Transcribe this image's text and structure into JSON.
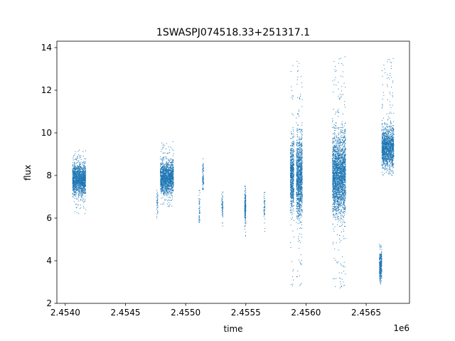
{
  "chart_data": {
    "type": "scatter",
    "title": "1SWASPJ074518.33+251317.1",
    "xlabel": "time",
    "ylabel": "flux",
    "x_offset_label": "1e6",
    "xlim": [
      2.45393,
      2.45686
    ],
    "ylim": [
      2.0,
      14.3
    ],
    "x_ticks": [
      2.454,
      2.4545,
      2.455,
      2.4555,
      2.456,
      2.4565
    ],
    "x_tick_labels": [
      "2.4540",
      "2.4545",
      "2.4550",
      "2.4555",
      "2.4560",
      "2.4565"
    ],
    "y_ticks": [
      2,
      4,
      6,
      8,
      10,
      12,
      14
    ],
    "y_tick_labels": [
      "2",
      "4",
      "6",
      "8",
      "10",
      "12",
      "14"
    ],
    "marker_color": "#1f77b4",
    "grid": false,
    "clusters": [
      {
        "x_range": [
          2.45406,
          2.45417
        ],
        "y_center": 7.8,
        "y_spread": 0.35,
        "y_min": 6.2,
        "y_max": 9.2,
        "count": 1500
      },
      {
        "x_range": [
          2.45476,
          2.45477
        ],
        "y_center": 6.6,
        "y_spread": 0.3,
        "y_min": 6.0,
        "y_max": 7.3,
        "count": 40
      },
      {
        "x_range": [
          2.45479,
          2.4549
        ],
        "y_center": 7.9,
        "y_spread": 0.35,
        "y_min": 6.5,
        "y_max": 9.6,
        "count": 1500
      },
      {
        "x_range": [
          2.45511,
          2.45512
        ],
        "y_center": 6.5,
        "y_spread": 0.4,
        "y_min": 5.8,
        "y_max": 7.3,
        "count": 50
      },
      {
        "x_range": [
          2.45514,
          2.45515
        ],
        "y_center": 7.9,
        "y_spread": 0.3,
        "y_min": 7.2,
        "y_max": 8.8,
        "count": 80
      },
      {
        "x_range": [
          2.4553,
          2.45531
        ],
        "y_center": 6.5,
        "y_spread": 0.3,
        "y_min": 5.6,
        "y_max": 7.3,
        "count": 60
      },
      {
        "x_range": [
          2.45549,
          2.4555
        ],
        "y_center": 6.5,
        "y_spread": 0.4,
        "y_min": 5.1,
        "y_max": 7.5,
        "count": 200
      },
      {
        "x_range": [
          2.45565,
          2.45566
        ],
        "y_center": 6.5,
        "y_spread": 0.4,
        "y_min": 5.3,
        "y_max": 7.2,
        "count": 50
      },
      {
        "x_range": [
          2.45587,
          2.4559
        ],
        "y_center": 8.0,
        "y_spread": 0.8,
        "y_min": 2.7,
        "y_max": 13.5,
        "count": 700
      },
      {
        "x_range": [
          2.45592,
          2.45597
        ],
        "y_center": 7.9,
        "y_spread": 0.9,
        "y_min": 2.7,
        "y_max": 13.6,
        "count": 1200
      },
      {
        "x_range": [
          2.45622,
          2.45633
        ],
        "y_center": 8.0,
        "y_spread": 0.9,
        "y_min": 2.6,
        "y_max": 13.6,
        "count": 2500
      },
      {
        "x_range": [
          2.45661,
          2.45663
        ],
        "y_center": 3.8,
        "y_spread": 0.35,
        "y_min": 2.9,
        "y_max": 4.9,
        "count": 300
      },
      {
        "x_range": [
          2.45663,
          2.45673
        ],
        "y_center": 9.3,
        "y_spread": 0.45,
        "y_min": 8.0,
        "y_max": 13.5,
        "count": 1500
      }
    ]
  }
}
